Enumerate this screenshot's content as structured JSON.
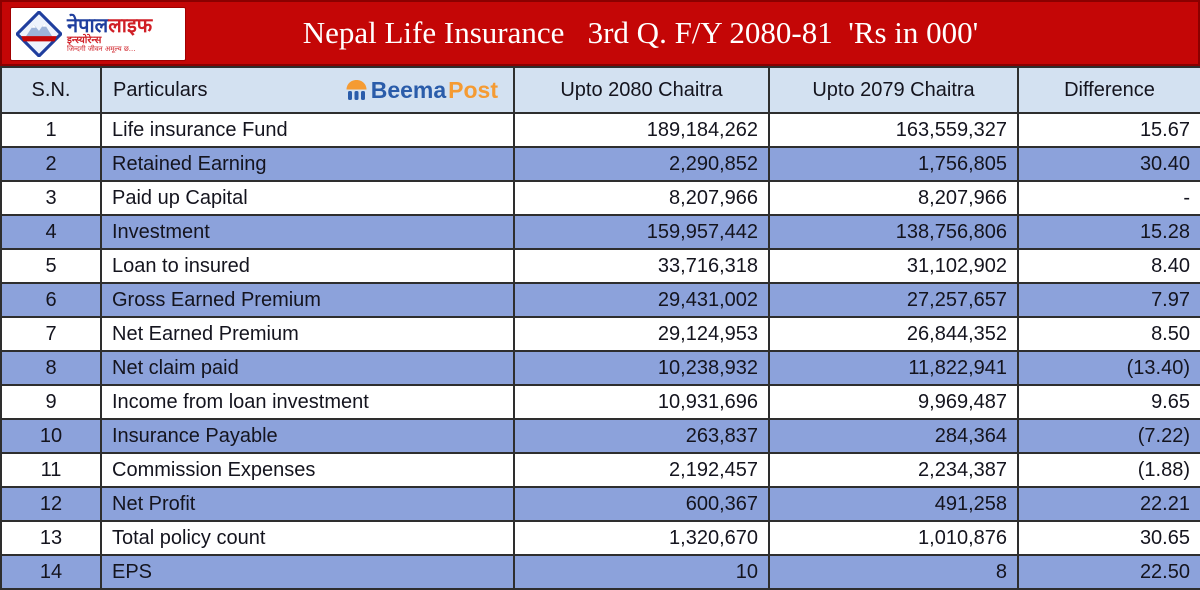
{
  "banner": {
    "title": "Nepal Life Insurance   3rd Q. F/Y 2080-81  'Rs in 000'",
    "logo": {
      "brand_primary": "नेपाल",
      "brand_secondary": "लाइफ",
      "subtitle": "इन्स्योरेन्स",
      "slogan": "जिन्दगी जीवन अमूल्य छ..."
    }
  },
  "table": {
    "columns": [
      "S.N.",
      "Particulars",
      "Upto 2080 Chaitra",
      "Upto 2079 Chaitra",
      "Difference"
    ],
    "watermark": {
      "beema": "Beema",
      "post": "Post"
    },
    "rows": [
      {
        "sn": "1",
        "particular": "Life insurance Fund",
        "upto_2080": "189,184,262",
        "upto_2079": "163,559,327",
        "difference": "15.67"
      },
      {
        "sn": "2",
        "particular": "Retained Earning",
        "upto_2080": "2,290,852",
        "upto_2079": "1,756,805",
        "difference": "30.40"
      },
      {
        "sn": "3",
        "particular": "Paid up Capital",
        "upto_2080": "8,207,966",
        "upto_2079": "8,207,966",
        "difference": "-"
      },
      {
        "sn": "4",
        "particular": "Investment",
        "upto_2080": "159,957,442",
        "upto_2079": "138,756,806",
        "difference": "15.28"
      },
      {
        "sn": "5",
        "particular": "Loan to insured",
        "upto_2080": "33,716,318",
        "upto_2079": "31,102,902",
        "difference": "8.40"
      },
      {
        "sn": "6",
        "particular": "Gross Earned Premium",
        "upto_2080": "29,431,002",
        "upto_2079": "27,257,657",
        "difference": "7.97"
      },
      {
        "sn": "7",
        "particular": "Net Earned Premium",
        "upto_2080": "29,124,953",
        "upto_2079": "26,844,352",
        "difference": "8.50"
      },
      {
        "sn": "8",
        "particular": "Net claim paid",
        "upto_2080": "10,238,932",
        "upto_2079": "11,822,941",
        "difference": "(13.40)"
      },
      {
        "sn": "9",
        "particular": "Income from loan investment",
        "upto_2080": "10,931,696",
        "upto_2079": "9,969,487",
        "difference": "9.65"
      },
      {
        "sn": "10",
        "particular": "Insurance Payable",
        "upto_2080": "263,837",
        "upto_2079": "284,364",
        "difference": "(7.22)"
      },
      {
        "sn": "11",
        "particular": "Commission Expenses",
        "upto_2080": "2,192,457",
        "upto_2079": "2,234,387",
        "difference": "(1.88)"
      },
      {
        "sn": "12",
        "particular": "Net Profit",
        "upto_2080": "600,367",
        "upto_2079": "491,258",
        "difference": "22.21"
      },
      {
        "sn": "13",
        "particular": "Total policy count",
        "upto_2080": "1,320,670",
        "upto_2079": "1,010,876",
        "difference": "30.65"
      },
      {
        "sn": "14",
        "particular": "EPS",
        "upto_2080": "10",
        "upto_2079": "8",
        "difference": "22.50"
      }
    ]
  },
  "chart_data": {
    "type": "table",
    "title": "Nepal Life Insurance 3rd Q. F/Y 2080-81 'Rs in 000'",
    "columns": [
      "S.N.",
      "Particulars",
      "Upto 2080 Chaitra",
      "Upto 2079 Chaitra",
      "Difference"
    ],
    "rows": [
      [
        "1",
        "Life insurance Fund",
        189184262,
        163559327,
        15.67
      ],
      [
        "2",
        "Retained Earning",
        2290852,
        1756805,
        30.4
      ],
      [
        "3",
        "Paid up Capital",
        8207966,
        8207966,
        null
      ],
      [
        "4",
        "Investment",
        159957442,
        138756806,
        15.28
      ],
      [
        "5",
        "Loan to insured",
        33716318,
        31102902,
        8.4
      ],
      [
        "6",
        "Gross Earned Premium",
        29431002,
        27257657,
        7.97
      ],
      [
        "7",
        "Net Earned Premium",
        29124953,
        26844352,
        8.5
      ],
      [
        "8",
        "Net claim paid",
        10238932,
        11822941,
        -13.4
      ],
      [
        "9",
        "Income from loan investment",
        10931696,
        9969487,
        9.65
      ],
      [
        "10",
        "Insurance Payable",
        263837,
        284364,
        -7.22
      ],
      [
        "11",
        "Commission Expenses",
        2192457,
        2234387,
        -1.88
      ],
      [
        "12",
        "Net Profit",
        600367,
        491258,
        22.21
      ],
      [
        "13",
        "Total policy count",
        1320670,
        1010876,
        30.65
      ],
      [
        "14",
        "EPS",
        10,
        8,
        22.5
      ]
    ]
  },
  "colors": {
    "banner_red": "#C40606",
    "header_bg": "#D3E1F1",
    "row_alt_bg": "#8CA2DB",
    "grid": "#2E2E2E",
    "title_text": "#FFFFFF"
  }
}
